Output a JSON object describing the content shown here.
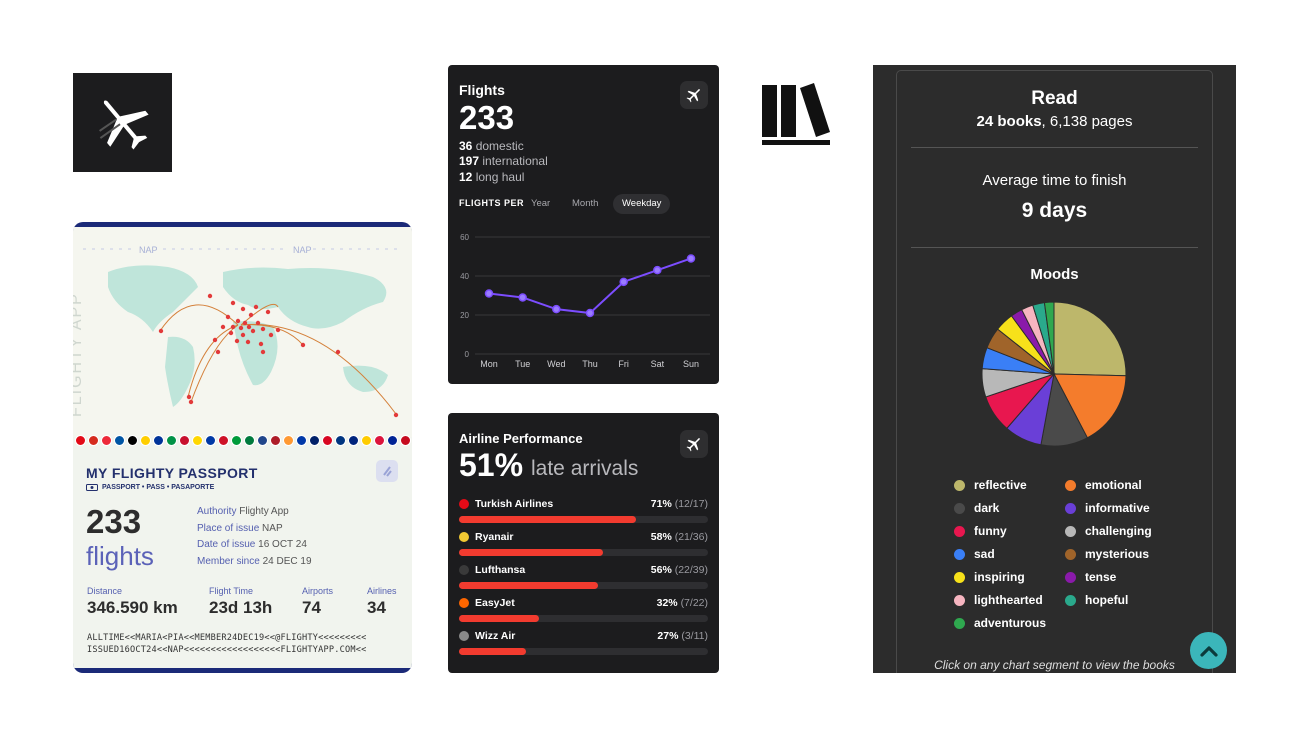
{
  "app_icon": {
    "name": "airplane-icon"
  },
  "passport": {
    "map_label": "NAP",
    "watermark": "FLIGHTY APP",
    "title": "MY FLIGHTY PASSPORT",
    "subtitle": "PASSPORT • PASS • PASAPORTE",
    "count": "233",
    "count_label": "flights",
    "authority_key": "Authority",
    "authority_val": "Flighty App",
    "place_key": "Place of issue",
    "place_val": "NAP",
    "date_key": "Date of issue",
    "date_val": "16 OCT 24",
    "member_key": "Member since",
    "member_val": "24 DEC 19",
    "stats": [
      {
        "label": "Distance",
        "value": "346.590 km"
      },
      {
        "label": "Flight Time",
        "value": "23d 13h"
      },
      {
        "label": "Airports",
        "value": "74"
      },
      {
        "label": "Airlines",
        "value": "34"
      }
    ],
    "mrz_line1": "ALLTIME<<MARIA<PIA<<MEMBER24DEC19<<@FLIGHTY<<<<<<<<<",
    "mrz_line2": "ISSUED16OCT24<<NAP<<<<<<<<<<<<<<<<<<FLIGHTYAPP.COM<<",
    "flag_colors": [
      "#e30a17",
      "#d52b1e",
      "#ed2939",
      "#0055a4",
      "#000000",
      "#ffce00",
      "#003399",
      "#009246",
      "#c8102e",
      "#ffd700",
      "#0039a6",
      "#ce1126",
      "#009b3a",
      "#007a3d",
      "#21468b",
      "#ae1c28",
      "#ff9933",
      "#0038a8",
      "#012169",
      "#d80621",
      "#003580",
      "#00247d",
      "#ffcc00",
      "#dc143c",
      "#002395",
      "#c60b1e",
      "#00966e",
      "#ce1126",
      "#d7141a",
      "#0033a0",
      "#c8102e",
      "#d62612",
      "#00966e"
    ]
  },
  "flights_card": {
    "title": "Flights",
    "total": "233",
    "domestic_num": "36",
    "domestic_label": "domestic",
    "international_num": "197",
    "international_label": "international",
    "longhaul_num": "12",
    "longhaul_label": "long haul",
    "per_label": "FLIGHTS PER",
    "tabs": [
      "Year",
      "Month",
      "Weekday"
    ],
    "active_tab": "Weekday",
    "icon": "airplane-icon"
  },
  "chart_data": {
    "type": "line",
    "categories": [
      "Mon",
      "Tue",
      "Wed",
      "Thu",
      "Fri",
      "Sat",
      "Sun"
    ],
    "values": [
      31,
      29,
      23,
      21,
      37,
      43,
      49
    ],
    "yticks": [
      0,
      20,
      40,
      60
    ],
    "ylim": [
      0,
      60
    ],
    "color": "#7c4dff",
    "grid": true
  },
  "performance_card": {
    "title": "Airline Performance",
    "big": "51%",
    "big_sub": "late arrivals",
    "airlines": [
      {
        "name": "Turkish Airlines",
        "pct": "71%",
        "ratio": "(12/17)",
        "value": 0.71,
        "logo": "#e30a17"
      },
      {
        "name": "Ryanair",
        "pct": "58%",
        "ratio": "(21/36)",
        "value": 0.58,
        "logo": "#f1c933"
      },
      {
        "name": "Lufthansa",
        "pct": "56%",
        "ratio": "(22/39)",
        "value": 0.56,
        "logo": "#3a3a3a"
      },
      {
        "name": "EasyJet",
        "pct": "32%",
        "ratio": "(7/22)",
        "value": 0.32,
        "logo": "#ff6600"
      },
      {
        "name": "Wizz Air",
        "pct": "27%",
        "ratio": "(3/11)",
        "value": 0.27,
        "logo": "#8a8a8a"
      }
    ]
  },
  "reading": {
    "read_title": "Read",
    "books": "24 books",
    "pages": ", 6,138 pages",
    "avg_label": "Average time to finish",
    "avg_value": "9 days",
    "moods_title": "Moods",
    "hint": "Click on any chart segment to view the books",
    "moods": [
      {
        "label": "reflective",
        "color": "#bdb76b",
        "value": 24
      },
      {
        "label": "emotional",
        "color": "#f47c2c",
        "value": 16
      },
      {
        "label": "dark",
        "color": "#4a4a4a",
        "value": 10
      },
      {
        "label": "informative",
        "color": "#6a3fd7",
        "value": 8
      },
      {
        "label": "funny",
        "color": "#e8174f",
        "value": 8
      },
      {
        "label": "challenging",
        "color": "#b8b8b8",
        "value": 6
      },
      {
        "label": "sad",
        "color": "#3a7ff6",
        "value": 4.5
      },
      {
        "label": "mysterious",
        "color": "#a0642a",
        "value": 4.5
      },
      {
        "label": "inspiring",
        "color": "#f7e11a",
        "value": 4
      },
      {
        "label": "tense",
        "color": "#8a1aaa",
        "value": 2.5
      },
      {
        "label": "lighthearted",
        "color": "#f6b5c0",
        "value": 2.5
      },
      {
        "label": "hopeful",
        "color": "#2aa98c",
        "value": 2.5
      },
      {
        "label": "adventurous",
        "color": "#2fa84f",
        "value": 2
      }
    ]
  }
}
